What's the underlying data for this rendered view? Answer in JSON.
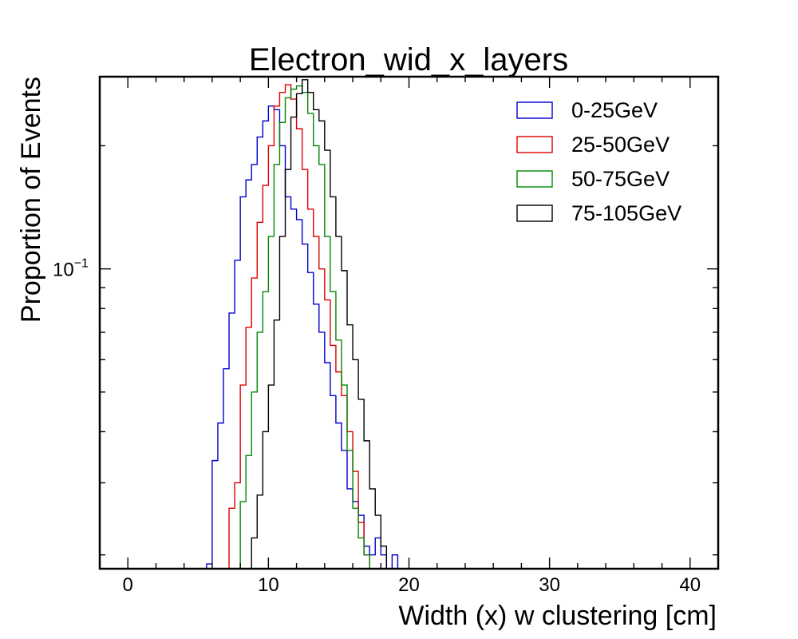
{
  "chart_data": {
    "type": "histogram",
    "title": "Electron_wid_x_layers",
    "xlabel": "Width (x) w clustering [cm]",
    "ylabel": "Proportion of Events",
    "xlim": [
      -2,
      42
    ],
    "ylim": [
      0.0185,
      0.295
    ],
    "yscale": "log",
    "xticks": [
      0,
      10,
      20,
      30,
      40
    ],
    "xtick_labels": [
      "0",
      "10",
      "20",
      "30",
      "40"
    ],
    "ytick_major": [
      0.1
    ],
    "ytick_labels": [
      "10",
      "−1"
    ],
    "legend_position": "top-right",
    "bin_width": 0.4,
    "series": [
      {
        "name": "0-25GeV",
        "color": "#0000cc",
        "x0": 5.6,
        "values": [
          0.019,
          0.034,
          0.042,
          0.057,
          0.078,
          0.105,
          0.15,
          0.165,
          0.18,
          0.21,
          0.23,
          0.25,
          0.245,
          0.2,
          0.15,
          0.14,
          0.132,
          0.115,
          0.098,
          0.082,
          0.07,
          0.059,
          0.049,
          0.042,
          0.036,
          0.029,
          0.027,
          0.025,
          0.021,
          0.02,
          0.022,
          0.02,
          0.017,
          0.02,
          0.018
        ]
      },
      {
        "name": "25-50GeV",
        "color": "#dd0000",
        "x0": 7.2,
        "values": [
          0.026,
          0.03,
          0.052,
          0.072,
          0.095,
          0.13,
          0.16,
          0.2,
          0.25,
          0.27,
          0.282,
          0.26,
          0.22,
          0.175,
          0.14,
          0.12,
          0.1,
          0.084,
          0.065,
          0.056,
          0.049,
          0.04,
          0.032,
          0.024,
          0.02,
          0.018
        ]
      },
      {
        "name": "50-75GeV",
        "color": "#008800",
        "x0": 8.0,
        "values": [
          0.027,
          0.035,
          0.05,
          0.07,
          0.088,
          0.12,
          0.18,
          0.228,
          0.262,
          0.275,
          0.28,
          0.27,
          0.24,
          0.2,
          0.18,
          0.12,
          0.088,
          0.067,
          0.052,
          0.036,
          0.026,
          0.022,
          0.02,
          0.017
        ]
      },
      {
        "name": "75-105GeV",
        "color": "#000000",
        "x0": 8.8,
        "values": [
          0.022,
          0.028,
          0.04,
          0.052,
          0.075,
          0.12,
          0.175,
          0.235,
          0.268,
          0.29,
          0.27,
          0.245,
          0.23,
          0.195,
          0.15,
          0.12,
          0.099,
          0.073,
          0.06,
          0.048,
          0.038,
          0.029,
          0.025,
          0.021,
          0.018
        ]
      }
    ]
  }
}
